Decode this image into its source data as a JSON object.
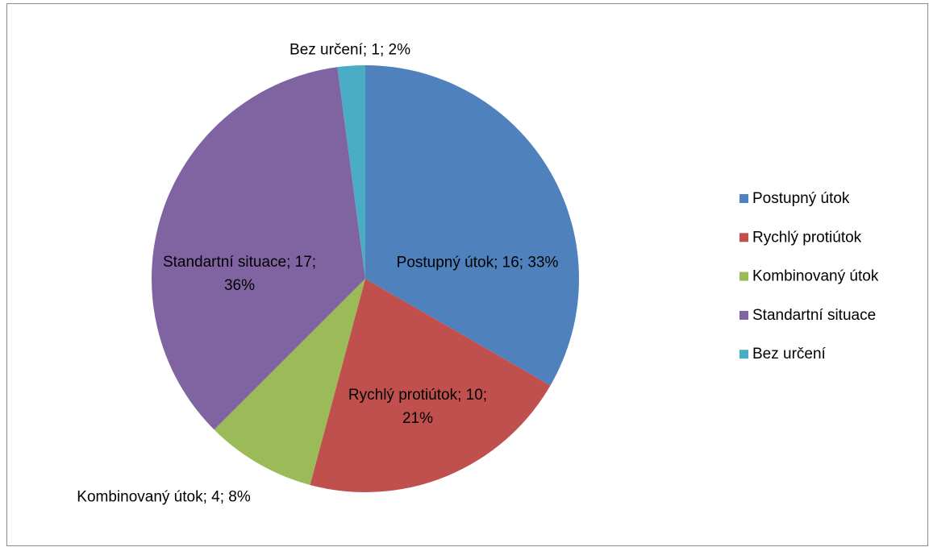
{
  "chart_data": {
    "type": "pie",
    "categories": [
      "Postupný útok",
      "Rychlý protiútok",
      "Kombinovaný útok",
      "Standartní situace",
      "Bez určení"
    ],
    "values": [
      16,
      10,
      4,
      17,
      1
    ],
    "value_labels": [
      "Postupný útok; 16; 33%",
      "Rychlý protiútok; 10; 21%",
      "Kombinovaný útok; 4; 8%",
      "Standartní situace; 17; 36%",
      "Bez určení; 1; 2%"
    ],
    "colors": [
      "#4f81bd",
      "#c0504d",
      "#9bbb59",
      "#8064a2",
      "#4bacc6"
    ],
    "legend": "right"
  }
}
